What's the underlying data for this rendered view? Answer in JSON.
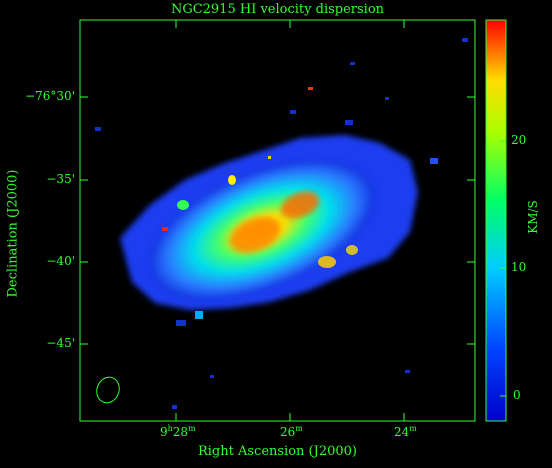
{
  "title": "NGC2915   HI velocity dispersion",
  "xaxis": {
    "label": "Right Ascension (J2000)",
    "ticks": [
      {
        "h": "9",
        "hsup": "h",
        "m": "28",
        "msup": "m"
      },
      {
        "h": "",
        "hsup": "",
        "m": "26",
        "msup": "m"
      },
      {
        "h": "",
        "hsup": "",
        "m": "24",
        "msup": "m"
      }
    ]
  },
  "yaxis": {
    "label": "Declination (J2000)",
    "ticks": [
      "−76°30'",
      "−35'",
      "−40'",
      "−45'"
    ]
  },
  "colorbar": {
    "label": "KM/S",
    "ticks": [
      "20",
      "10",
      "0"
    ],
    "range": [
      -2,
      27
    ]
  },
  "colors": {
    "axes": "#33ff33",
    "background": "#000000"
  }
}
